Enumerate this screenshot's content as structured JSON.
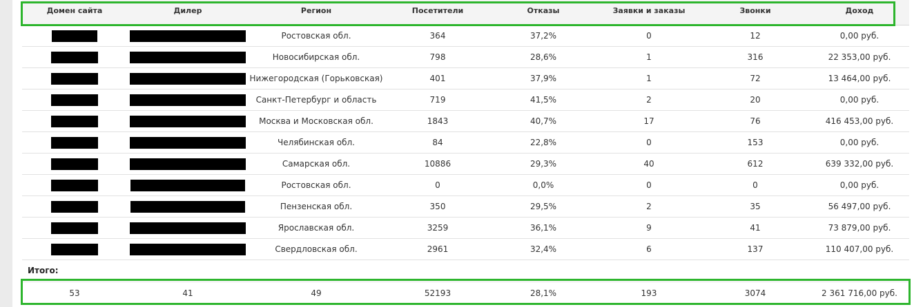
{
  "table": {
    "headers": [
      "Домен сайта",
      "Дилер",
      "Регион",
      "Посетители",
      "Отказы",
      "Заявки и заказы",
      "Звонки",
      "Доход"
    ],
    "rows": [
      {
        "region": "Ростовская обл.",
        "visitors": "364",
        "bounces": "37,2%",
        "orders": "0",
        "calls": "12",
        "income": "0,00 руб."
      },
      {
        "region": "Новосибирская обл.",
        "visitors": "798",
        "bounces": "28,6%",
        "orders": "1",
        "calls": "316",
        "income": "22 353,00 руб."
      },
      {
        "region": "Нижегородская (Горьковская)",
        "visitors": "401",
        "bounces": "37,9%",
        "orders": "1",
        "calls": "72",
        "income": "13 464,00 руб."
      },
      {
        "region": "Санкт-Петербург и область",
        "visitors": "719",
        "bounces": "41,5%",
        "orders": "2",
        "calls": "20",
        "income": "0,00 руб."
      },
      {
        "region": "Москва и Московская обл.",
        "visitors": "1843",
        "bounces": "40,7%",
        "orders": "17",
        "calls": "76",
        "income": "416 453,00 руб."
      },
      {
        "region": "Челябинская обл.",
        "visitors": "84",
        "bounces": "22,8%",
        "orders": "0",
        "calls": "153",
        "income": "0,00 руб."
      },
      {
        "region": "Самарская обл.",
        "visitors": "10886",
        "bounces": "29,3%",
        "orders": "40",
        "calls": "612",
        "income": "639 332,00 руб."
      },
      {
        "region": "Ростовская обл.",
        "visitors": "0",
        "bounces": "0,0%",
        "orders": "0",
        "calls": "0",
        "income": "0,00 руб."
      },
      {
        "region": "Пензенская обл.",
        "visitors": "350",
        "bounces": "29,5%",
        "orders": "2",
        "calls": "35",
        "income": "56 497,00 руб."
      },
      {
        "region": "Ярославская обл.",
        "visitors": "3259",
        "bounces": "36,1%",
        "orders": "9",
        "calls": "41",
        "income": "73 879,00 руб."
      },
      {
        "region": "Свердловская обл.",
        "visitors": "2961",
        "bounces": "32,4%",
        "orders": "6",
        "calls": "137",
        "income": "110 407,00 руб."
      }
    ]
  },
  "totals": {
    "label": "Итого:",
    "values": [
      "53",
      "41",
      "49",
      "52193",
      "28,1%",
      "193",
      "3074",
      "2 361 716,00 руб."
    ]
  },
  "colors": {
    "highlight": "#2db52d",
    "redaction": "#000000"
  }
}
